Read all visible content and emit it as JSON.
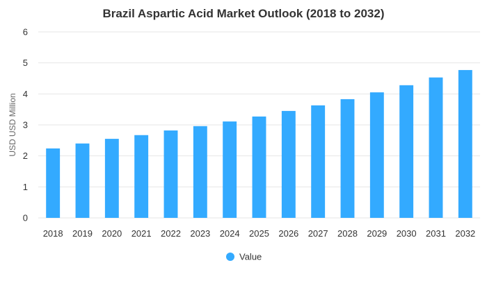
{
  "chart_data": {
    "type": "bar",
    "title": "Brazil Aspartic Acid Market Outlook (2018 to 2032)",
    "xlabel": "",
    "ylabel": "USD USD Million",
    "ylim": [
      0,
      6
    ],
    "yticks": [
      0,
      1,
      2,
      3,
      4,
      5,
      6
    ],
    "grid": true,
    "legend_position": "bottom",
    "categories": [
      "2018",
      "2019",
      "2020",
      "2021",
      "2022",
      "2023",
      "2024",
      "2025",
      "2026",
      "2027",
      "2028",
      "2029",
      "2030",
      "2031",
      "2032"
    ],
    "series": [
      {
        "name": "Value",
        "color": "#33aaff",
        "values": [
          2.24,
          2.4,
          2.55,
          2.67,
          2.82,
          2.96,
          3.11,
          3.27,
          3.45,
          3.63,
          3.83,
          4.05,
          4.28,
          4.53,
          4.77
        ]
      }
    ]
  }
}
